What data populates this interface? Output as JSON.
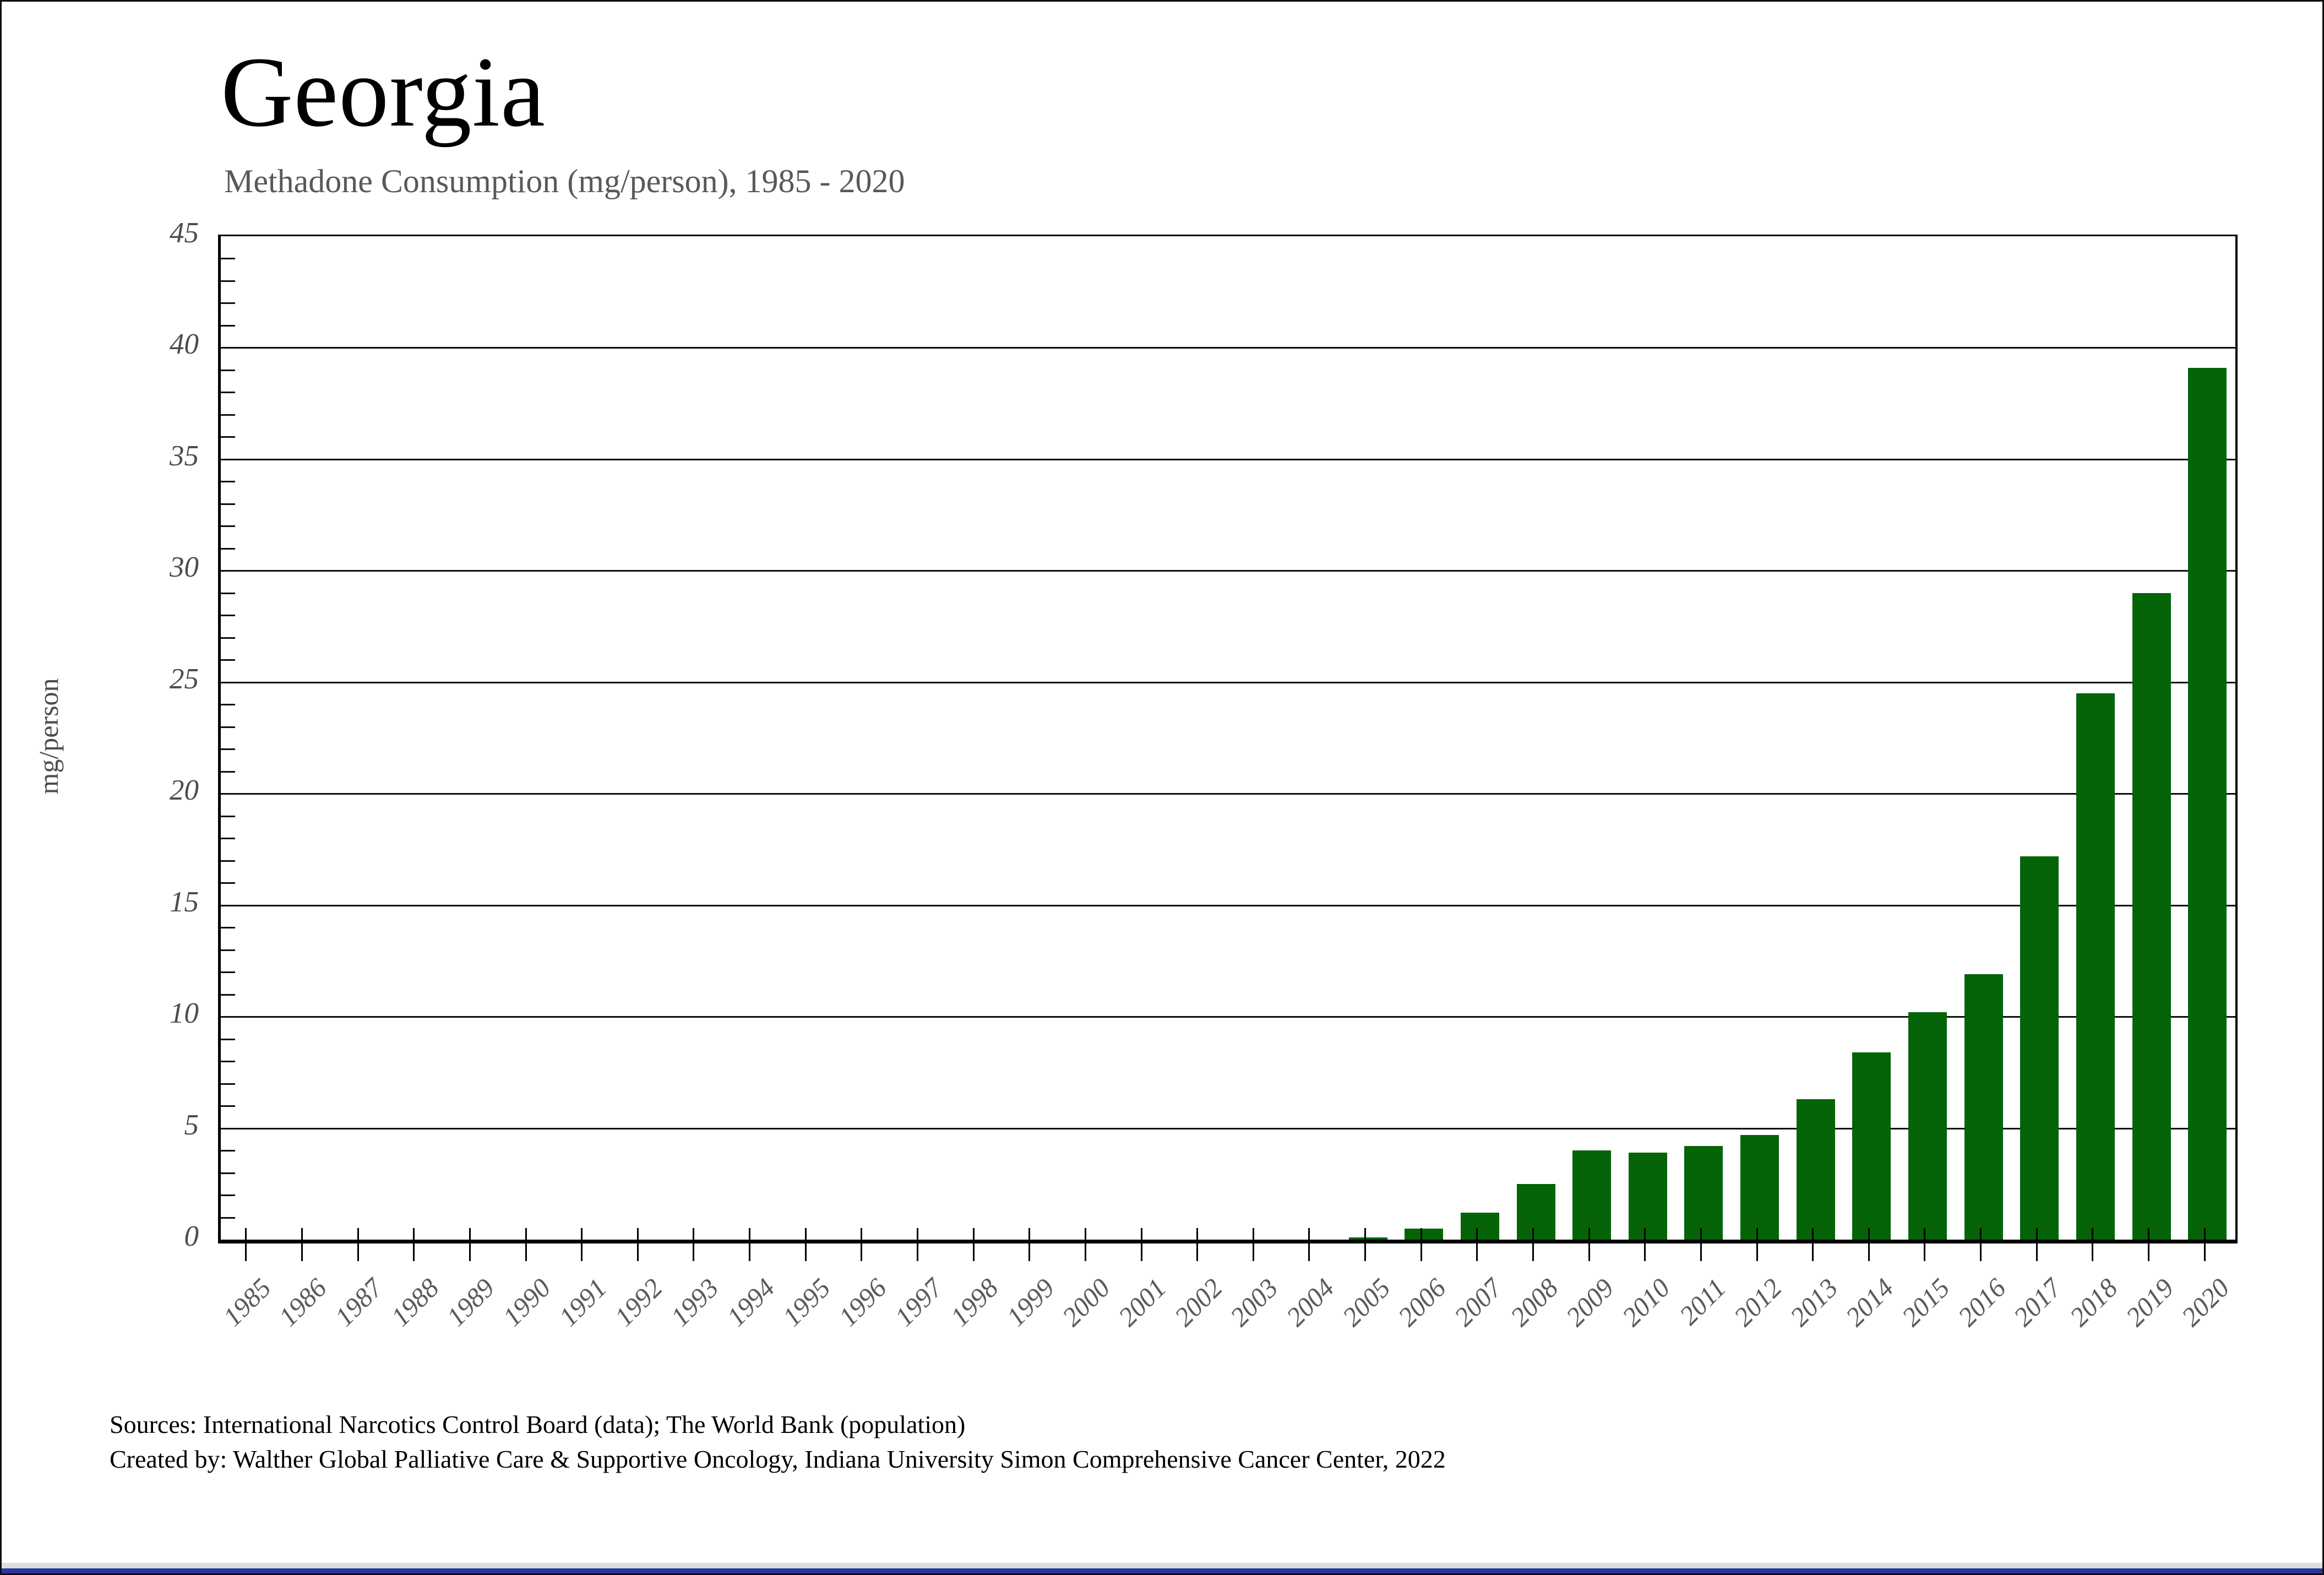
{
  "header": {
    "title": "Georgia",
    "subtitle": "Methadone Consumption (mg/person), 1985 - 2020"
  },
  "footer": {
    "line1": "Sources: International Narcotics Control Board (data); The World Bank (population)",
    "line2": "Created by: Walther Global Palliative Care & Supportive Oncology, Indiana University Simon Comprehensive Cancer Center, 2022"
  },
  "chart_data": {
    "type": "bar",
    "title": "Georgia",
    "subtitle": "Methadone Consumption (mg/person), 1985 - 2020",
    "categories": [
      1985,
      1986,
      1987,
      1988,
      1989,
      1990,
      1991,
      1992,
      1993,
      1994,
      1995,
      1996,
      1997,
      1998,
      1999,
      2000,
      2001,
      2002,
      2003,
      2004,
      2005,
      2006,
      2007,
      2008,
      2009,
      2010,
      2011,
      2012,
      2013,
      2014,
      2015,
      2016,
      2017,
      2018,
      2019,
      2020
    ],
    "values": [
      0,
      0,
      0,
      0,
      0,
      0,
      0,
      0,
      0,
      0,
      0,
      0,
      0,
      0,
      0,
      0,
      0,
      0,
      0,
      0,
      0.1,
      0.5,
      1.2,
      2.5,
      4.0,
      3.9,
      4.2,
      4.7,
      6.3,
      8.4,
      10.2,
      11.9,
      17.2,
      24.5,
      29.0,
      39.1
    ],
    "xlabel": "",
    "ylabel": "mg/person",
    "ylim": [
      0,
      45
    ],
    "ytick_step": 5,
    "minor_tick_step": 1,
    "grid": true,
    "legend": false,
    "bar_color": "#046407"
  },
  "colors": {
    "bar": "#046407",
    "subtitle_text": "#595959",
    "tick_label": "#5a5a5a",
    "bottom_strip_gray": "#dcdcdc",
    "bottom_strip_blue": "#2736a4"
  }
}
